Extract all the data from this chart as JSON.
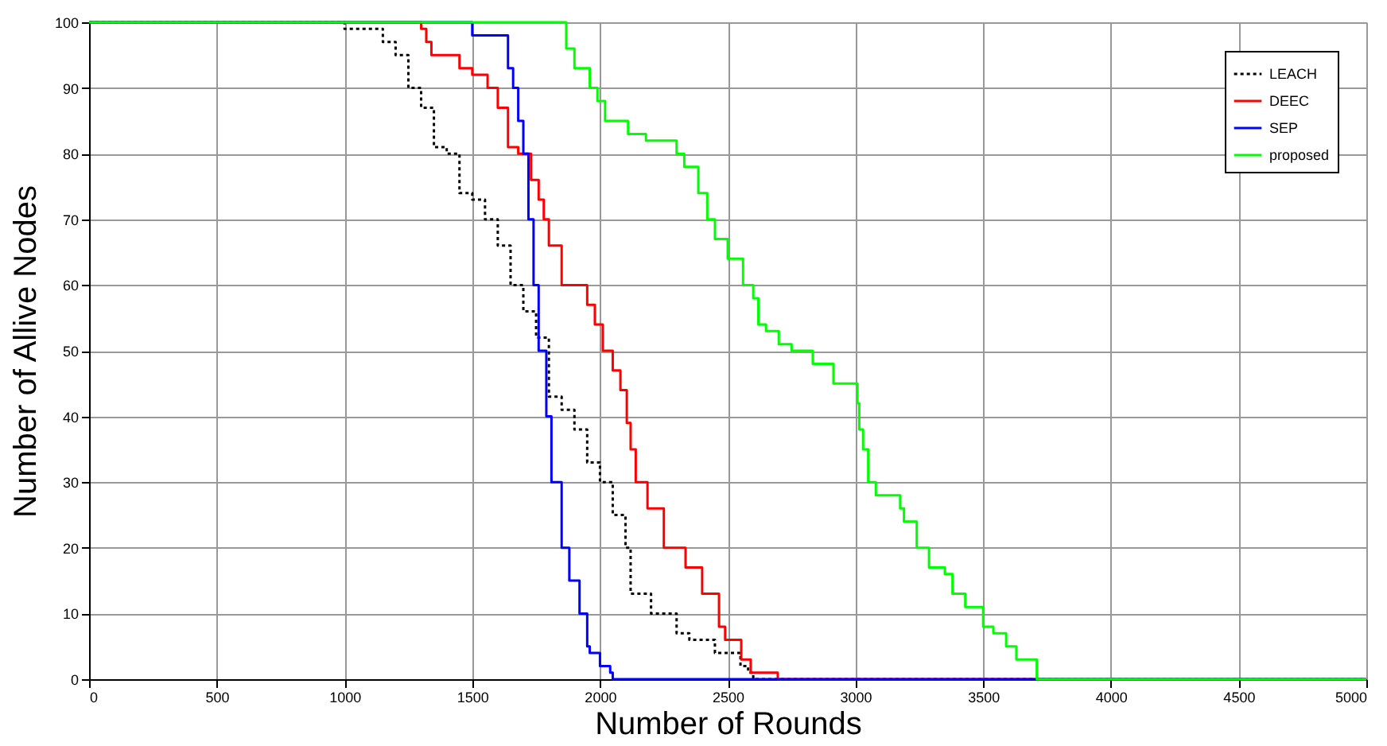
{
  "chart_data": {
    "type": "step",
    "xlabel": "Number of Rounds",
    "ylabel": "Number of Allive Nodes",
    "xlim": [
      0,
      5000
    ],
    "ylim": [
      0,
      100
    ],
    "xticks": [
      0,
      500,
      1000,
      1500,
      2000,
      2500,
      3000,
      3500,
      4000,
      4500,
      5000
    ],
    "yticks": [
      0,
      10,
      20,
      30,
      40,
      50,
      60,
      70,
      80,
      90,
      100
    ],
    "grid": true,
    "legend": "top right",
    "marker": "none",
    "series": [
      {
        "name": "LEACH",
        "color": "#000000",
        "line_style": "dotted",
        "x": [
          0,
          1000,
          1150,
          1200,
          1250,
          1300,
          1350,
          1400,
          1450,
          1500,
          1550,
          1600,
          1650,
          1700,
          1750,
          1800,
          1850,
          1900,
          1950,
          2000,
          2050,
          2100,
          2120,
          2200,
          2300,
          2350,
          2450,
          2550,
          2580,
          2600,
          5000
        ],
        "values": [
          100,
          99,
          97,
          95,
          90,
          87,
          81,
          80,
          74,
          73,
          70,
          66,
          60,
          56,
          52,
          43,
          41,
          38,
          33,
          30,
          25,
          20,
          13,
          10,
          7,
          6,
          4,
          2,
          1,
          0,
          0
        ]
      },
      {
        "name": "DEEC",
        "color": "#ff0000",
        "line_style": "solid",
        "x": [
          0,
          1300,
          1320,
          1340,
          1450,
          1500,
          1560,
          1600,
          1640,
          1680,
          1730,
          1760,
          1780,
          1800,
          1850,
          1870,
          1950,
          1980,
          2011,
          2050,
          2080,
          2105,
          2120,
          2140,
          2186,
          2250,
          2335,
          2400,
          2466,
          2490,
          2553,
          2590,
          2696,
          5000
        ],
        "values": [
          100,
          99,
          97,
          95,
          93,
          92,
          90,
          87,
          81,
          80,
          76,
          73,
          70,
          66,
          60,
          60,
          57,
          54,
          50,
          47,
          44,
          39,
          35,
          30,
          26,
          20,
          17,
          13,
          8,
          6,
          3,
          1,
          0,
          0
        ]
      },
      {
        "name": "SEP",
        "color": "#0000ff",
        "line_style": "solid",
        "x": [
          0,
          1500,
          1640,
          1660,
          1680,
          1700,
          1720,
          1740,
          1760,
          1790,
          1810,
          1850,
          1880,
          1920,
          1950,
          1960,
          2000,
          2040,
          2050,
          5000
        ],
        "values": [
          100,
          98,
          93,
          90,
          85,
          80,
          70,
          60,
          50,
          40,
          30,
          20,
          15,
          10,
          5,
          4,
          2,
          1,
          0,
          0
        ]
      },
      {
        "name": "proposed",
        "color": "#00ff00",
        "line_style": "solid",
        "x": [
          0,
          1868,
          1900,
          1960,
          1990,
          2020,
          2110,
          2180,
          2300,
          2330,
          2385,
          2420,
          2450,
          2500,
          2560,
          2600,
          2620,
          2650,
          2700,
          2750,
          2833,
          2914,
          3008,
          3015,
          3030,
          3050,
          3080,
          3175,
          3190,
          3240,
          3288,
          3350,
          3380,
          3430,
          3500,
          3540,
          3590,
          3630,
          3710,
          5000
        ],
        "values": [
          100,
          96,
          93,
          90,
          88,
          85,
          83,
          82,
          80,
          78,
          74,
          70,
          67,
          64,
          60,
          58,
          54,
          53,
          51,
          50,
          48,
          45,
          42,
          38,
          35,
          30,
          28,
          26,
          24,
          20,
          17,
          16,
          13,
          11,
          8,
          7,
          5,
          3,
          0,
          0
        ]
      }
    ]
  }
}
